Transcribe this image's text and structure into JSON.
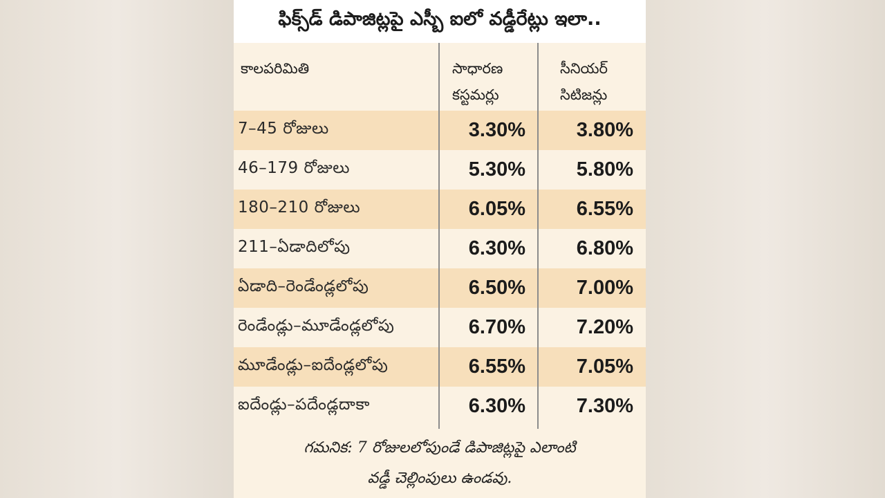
{
  "title": "ఫిక్స్‌డ్ డిపాజిట్లపై ఎస్బీ ఐలో వడ్డీరేట్లు ఇలా..",
  "table": {
    "headers": [
      "కాలపరిమితి",
      "సాధారణ\nకస్టమర్లు",
      "సీనియర్\nసిటిజన్లు"
    ],
    "rows": [
      {
        "period": "7–45 రోజులు",
        "regular": "3.30%",
        "senior": "3.80%"
      },
      {
        "period": "46–179 రోజులు",
        "regular": "5.30%",
        "senior": "5.80%"
      },
      {
        "period": "180–210 రోజులు",
        "regular": "6.05%",
        "senior": "6.55%"
      },
      {
        "period": "211–ఏడాదిలోపు",
        "regular": "6.30%",
        "senior": "6.80%"
      },
      {
        "period": "ఏడాది–రెండేండ్లలోపు",
        "regular": "6.50%",
        "senior": "7.00%"
      },
      {
        "period": "రెండేండ్లు–మూడేండ్లలోపు",
        "regular": "6.70%",
        "senior": "7.20%"
      },
      {
        "period": "మూడేండ్లు–ఐదేండ్లలోపు",
        "regular": "6.55%",
        "senior": "7.05%"
      },
      {
        "period": "ఐదేండ్లు–పదేండ్లదాకా",
        "regular": "6.30%",
        "senior": "7.30%"
      }
    ]
  },
  "note": "గమనిక: 7 రోజులలోపుండే డిపాజిట్లపై ఎలాంటి\nవడ్డీ చెల్లింపులు ఉండవు."
}
